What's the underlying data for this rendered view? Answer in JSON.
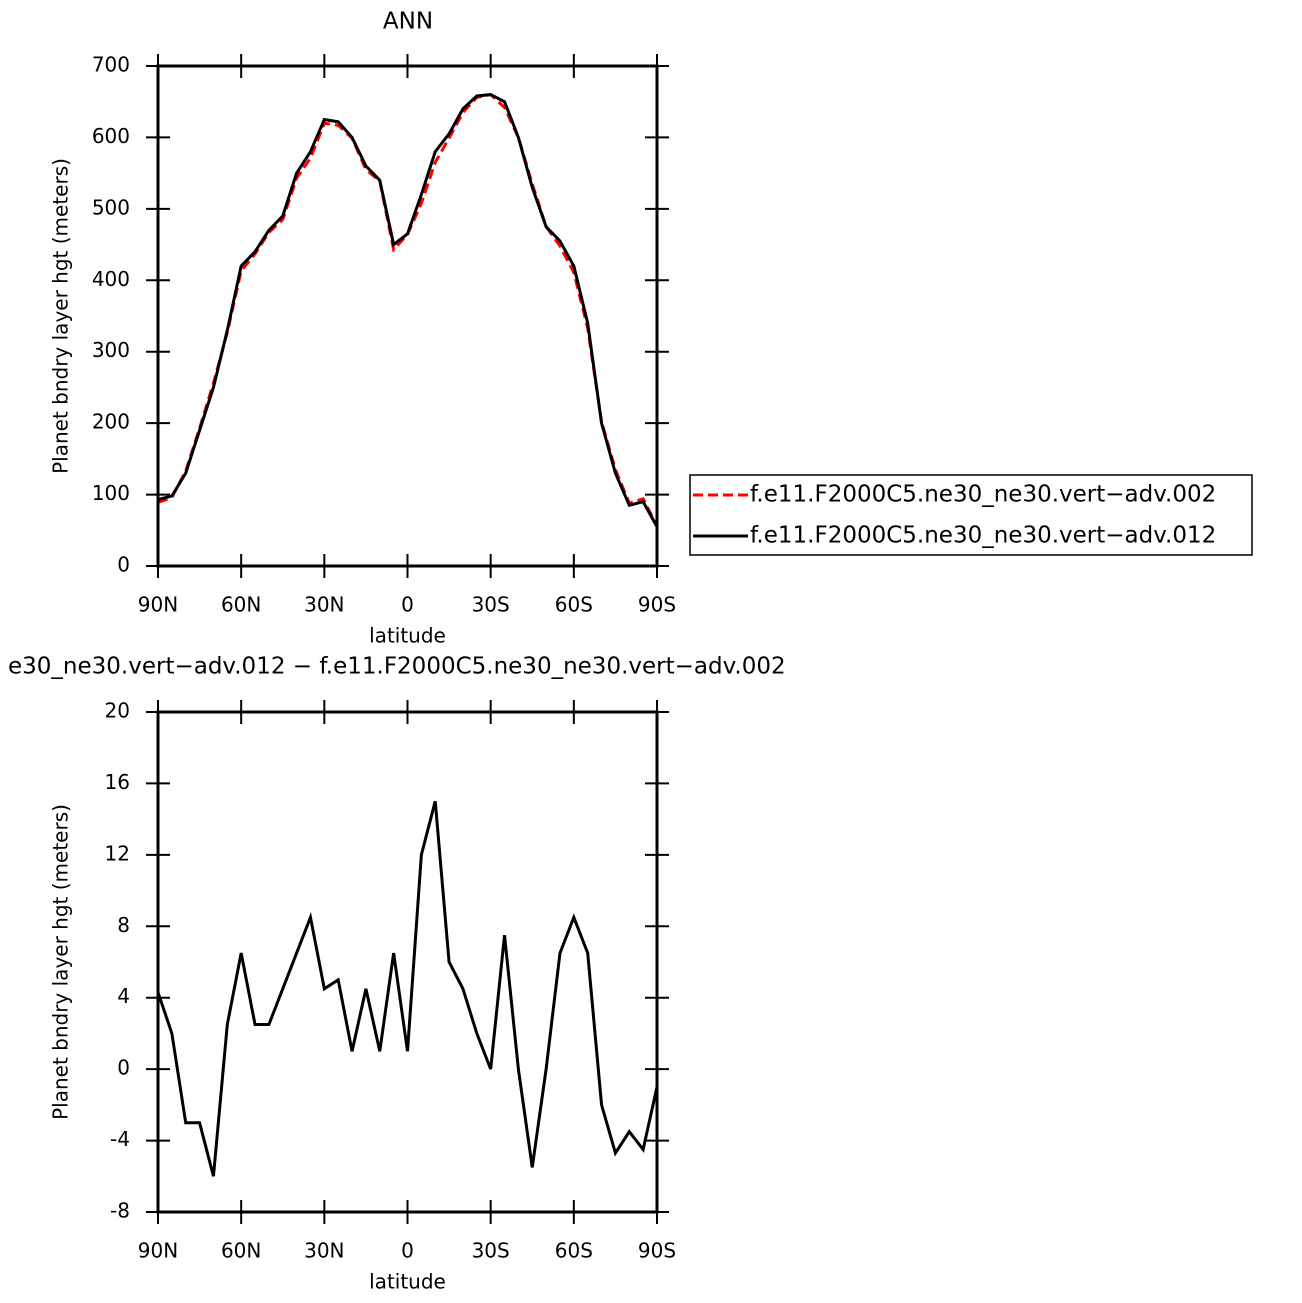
{
  "chart_data": [
    {
      "type": "line",
      "title": "ANN",
      "xlabel": "latitude",
      "ylabel": "Planet bndry layer hgt (meters)",
      "x": [
        90,
        85,
        80,
        75,
        70,
        65,
        60,
        55,
        50,
        45,
        40,
        35,
        30,
        25,
        20,
        15,
        10,
        5,
        0,
        -5,
        -10,
        -15,
        -20,
        -25,
        -30,
        -35,
        -40,
        -45,
        -50,
        -55,
        -60,
        -65,
        -70,
        -75,
        -80,
        -85,
        -90
      ],
      "xlim": [
        90,
        -90
      ],
      "xticks": [
        {
          "value": 90,
          "label": "90N"
        },
        {
          "value": 60,
          "label": "60N"
        },
        {
          "value": 30,
          "label": "30N"
        },
        0,
        {
          "value": -30,
          "label": "30S"
        },
        {
          "value": -60,
          "label": "60S"
        },
        {
          "value": -90,
          "label": "90S"
        }
      ],
      "ylim": [
        0,
        700
      ],
      "yticks": [
        0,
        100,
        200,
        300,
        400,
        500,
        600,
        700
      ],
      "legend": "right",
      "series": [
        {
          "name": "f.e11.F2000C5.ne30_ne30.vert−adv.002",
          "color": "#ff0000",
          "style": "dashed",
          "values": [
            89,
            96,
            133,
            193,
            256,
            327,
            413,
            437,
            467,
            485,
            543,
            571,
            620,
            617,
            599,
            555,
            539,
            443,
            464,
            508,
            565,
            599,
            635,
            656,
            660,
            642,
            600,
            535,
            475,
            448,
            411,
            333,
            202,
            135,
            88,
            94,
            56
          ]
        },
        {
          "name": "f.e11.F2000C5.ne30_ne30.vert−adv.012",
          "color": "#000000",
          "style": "solid",
          "values": [
            93,
            98,
            130,
            190,
            250,
            330,
            420,
            440,
            470,
            490,
            550,
            580,
            625,
            622,
            600,
            560,
            540,
            450,
            465,
            520,
            580,
            605,
            640,
            658,
            660,
            650,
            600,
            530,
            475,
            455,
            420,
            340,
            200,
            130,
            85,
            90,
            55
          ]
        }
      ]
    },
    {
      "type": "line",
      "title": "e30_ne30.vert−adv.012 − f.e11.F2000C5.ne30_ne30.vert−adv.002",
      "xlabel": "latitude",
      "ylabel": "Planet bndry layer hgt (meters)",
      "x": [
        90,
        85,
        80,
        75,
        70,
        65,
        60,
        55,
        50,
        45,
        40,
        35,
        30,
        25,
        20,
        15,
        10,
        5,
        0,
        -5,
        -10,
        -15,
        -20,
        -25,
        -30,
        -35,
        -40,
        -45,
        -50,
        -55,
        -60,
        -65,
        -70,
        -75,
        -80,
        -85,
        -90
      ],
      "xlim": [
        90,
        -90
      ],
      "xticks": [
        {
          "value": 90,
          "label": "90N"
        },
        {
          "value": 60,
          "label": "60N"
        },
        {
          "value": 30,
          "label": "30N"
        },
        0,
        {
          "value": -30,
          "label": "30S"
        },
        {
          "value": -60,
          "label": "60S"
        },
        {
          "value": -90,
          "label": "90S"
        }
      ],
      "ylim": [
        -8,
        20
      ],
      "yticks": [
        -8,
        -4,
        0,
        4,
        8,
        12,
        16,
        20
      ],
      "series": [
        {
          "color": "#000000",
          "style": "solid",
          "values": [
            4.3,
            2,
            -3,
            -3,
            -6,
            2.5,
            6.5,
            2.5,
            2.5,
            4.5,
            6.5,
            8.5,
            4.5,
            5,
            1,
            4.5,
            1,
            6.5,
            1,
            12,
            15,
            6,
            4.5,
            2,
            0,
            7.5,
            0,
            -5.5,
            0,
            6.5,
            8.5,
            6.5,
            -2,
            -4.7,
            -3.5,
            -4.5,
            -1
          ]
        }
      ]
    }
  ]
}
